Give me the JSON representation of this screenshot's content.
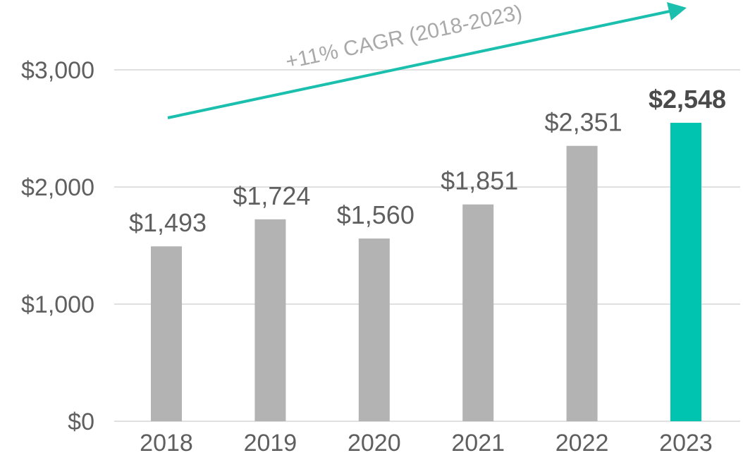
{
  "chart_data": {
    "type": "bar",
    "title": "",
    "xlabel": "",
    "ylabel": "",
    "categories": [
      "2018",
      "2019",
      "2020",
      "2021",
      "2022",
      "2023"
    ],
    "values": [
      1493,
      1724,
      1560,
      1851,
      2351,
      2548
    ],
    "value_labels": [
      "$1,493",
      "$1,724",
      "$1,560",
      "$1,851",
      "$2,351",
      "$2,548"
    ],
    "ylim": [
      0,
      3000
    ],
    "yticks": [
      0,
      1000,
      2000,
      3000
    ],
    "ytick_labels": [
      "$0",
      "$1,000",
      "$2,000",
      "$3,000"
    ],
    "grid": true,
    "highlight_index": 5,
    "colors": {
      "bar": "#b3b3b3",
      "highlight": "#00c4b0",
      "grid": "#e0e0e0",
      "trend": "#1abfae"
    },
    "annotation": {
      "text": "+11% CAGR (2018-2023)",
      "from_year": "2018",
      "to_year": "2023"
    }
  }
}
